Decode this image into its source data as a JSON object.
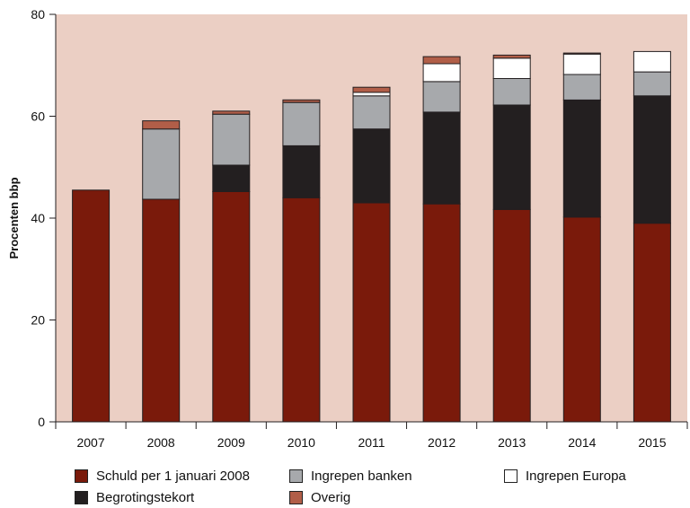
{
  "chart_data": {
    "type": "bar",
    "stacked": true,
    "title": "",
    "xlabel": "",
    "ylabel": "Procenten bbp",
    "ylim": [
      0,
      80
    ],
    "yticks": [
      0,
      20,
      40,
      60,
      80
    ],
    "grid": false,
    "background": "#ebcfc4",
    "legend_position": "bottom",
    "categories": [
      "2007",
      "2008",
      "2009",
      "2010",
      "2011",
      "2012",
      "2013",
      "2014",
      "2015"
    ],
    "series": [
      {
        "name": "Schuld per 1 januari 2008",
        "color": "#7a1a0b",
        "values": [
          45.5,
          43.7,
          45.2,
          44.0,
          43.0,
          42.8,
          41.7,
          40.2,
          39.0
        ]
      },
      {
        "name": "Begrotingstekort",
        "color": "#231f20",
        "values": [
          0,
          0,
          5.2,
          10.2,
          14.5,
          18.0,
          20.5,
          23.0,
          25.0
        ]
      },
      {
        "name": "Ingrepen banken",
        "color": "#a7a9ac",
        "values": [
          0,
          13.8,
          10.0,
          8.5,
          6.5,
          6.0,
          5.2,
          5.0,
          4.7
        ]
      },
      {
        "name": "Ingrepen Europa",
        "color": "#ffffff",
        "values": [
          0,
          0,
          0,
          0,
          0.7,
          3.5,
          4.0,
          4.0,
          4.0
        ]
      },
      {
        "name": "Overig",
        "color": "#b15e48",
        "values": [
          0,
          1.6,
          0.6,
          0.5,
          1.0,
          1.4,
          0.6,
          0.2,
          0.0
        ]
      }
    ]
  },
  "legend": [
    {
      "label": "Schuld per 1 januari 2008",
      "color": "#7a1a0b"
    },
    {
      "label": "Ingrepen banken",
      "color": "#a7a9ac"
    },
    {
      "label": "Ingrepen Europa",
      "color": "#ffffff"
    },
    {
      "label": "Begrotingstekort",
      "color": "#231f20"
    },
    {
      "label": "Overig",
      "color": "#b15e48"
    }
  ]
}
